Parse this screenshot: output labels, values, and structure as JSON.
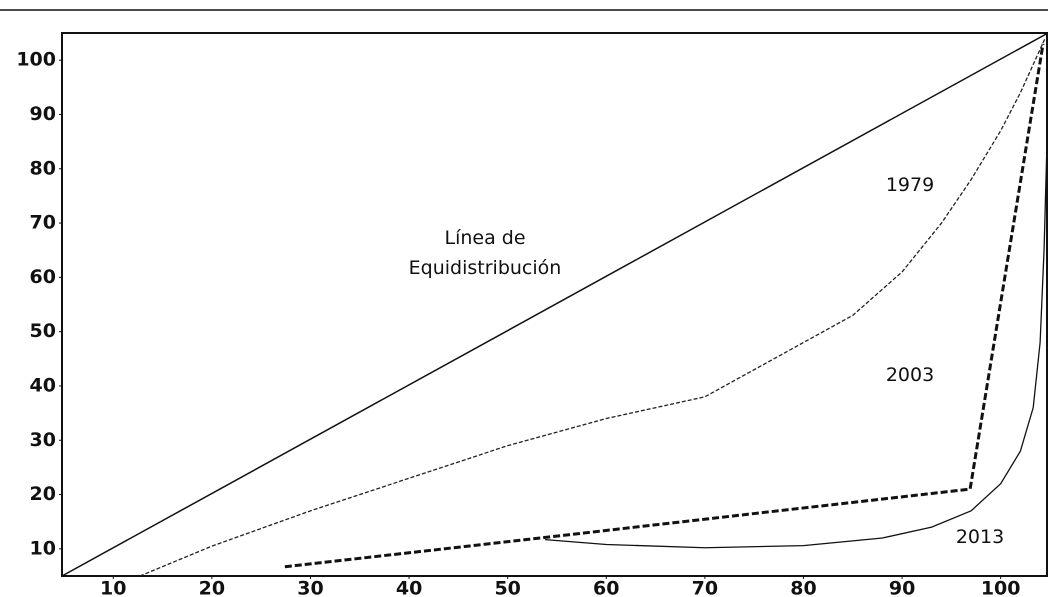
{
  "chart_data": {
    "type": "line",
    "xlim": [
      4.8,
      104.8
    ],
    "ylim": [
      5,
      105
    ],
    "xticks": [
      10,
      20,
      30,
      40,
      50,
      60,
      70,
      80,
      90,
      100
    ],
    "yticks": [
      10,
      20,
      30,
      40,
      50,
      60,
      70,
      80,
      90,
      100
    ],
    "grid": false,
    "series": [
      {
        "name": "Línea de Equidistribución",
        "color": "#111",
        "dashed": false,
        "width": 1.5,
        "x": [
          4.8,
          104.8
        ],
        "values": [
          5,
          105
        ]
      },
      {
        "name": "1979",
        "color": "#222",
        "dashed": true,
        "width": 1.3,
        "x": [
          12.7,
          20,
          30,
          40,
          50,
          60,
          70,
          80,
          85,
          90,
          94,
          97,
          100,
          102,
          104.5
        ],
        "values": [
          5,
          10.5,
          17,
          23,
          29,
          34,
          38,
          48,
          53,
          61,
          70,
          78,
          87,
          94,
          104
        ]
      },
      {
        "name": "2003",
        "color": "#111",
        "dashed": true,
        "width": 3,
        "x": [
          27.4,
          53.3,
          75,
          96.9,
          104.3
        ],
        "values": [
          6.7,
          12,
          16.5,
          21,
          103
        ]
      },
      {
        "name": "2013",
        "color": "#111",
        "dashed": false,
        "width": 1.3,
        "x": [
          53.8,
          60,
          70,
          80,
          88,
          93,
          97,
          100,
          102,
          103.3,
          104,
          104.4,
          104.7,
          104.8
        ],
        "values": [
          11.7,
          10.8,
          10.2,
          10.6,
          12,
          14,
          17,
          22,
          28,
          36,
          48,
          65,
          85,
          103
        ]
      }
    ]
  }
}
